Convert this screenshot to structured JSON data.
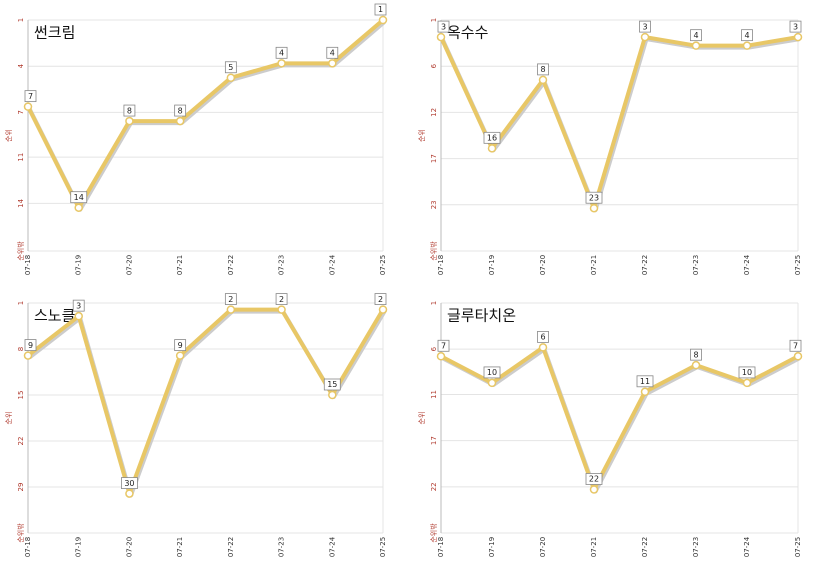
{
  "chart_data": [
    {
      "type": "line",
      "title": "썬크림",
      "ylabel": "순위",
      "color": "#e8c766",
      "categories": [
        "07-18",
        "07-19",
        "07-20",
        "07-21",
        "07-22",
        "07-23",
        "07-24",
        "07-25"
      ],
      "values": [
        7,
        14,
        8,
        8,
        5,
        4,
        4,
        1
      ],
      "ylim": [
        1,
        17
      ],
      "y_reversed": true,
      "grid": true,
      "yticks": [
        1,
        {
          "value": 4.2,
          "label": "4"
        },
        {
          "value": 7.4,
          "label": "7"
        },
        {
          "value": 10.5,
          "label": "11"
        },
        {
          "value": 13.7,
          "label": "14"
        },
        {
          "value": 17,
          "label": "순위밖"
        }
      ]
    },
    {
      "type": "line",
      "title": "옥수수",
      "ylabel": "순위",
      "color": "#e8c766",
      "categories": [
        "07-18",
        "07-19",
        "07-20",
        "07-21",
        "07-22",
        "07-23",
        "07-24",
        "07-25"
      ],
      "values": [
        3,
        16,
        8,
        23,
        3,
        4,
        4,
        3
      ],
      "ylim": [
        1,
        28
      ],
      "y_reversed": true,
      "grid": true,
      "yticks": [
        1,
        {
          "value": 6.4,
          "label": "6"
        },
        {
          "value": 11.8,
          "label": "12"
        },
        {
          "value": 17.2,
          "label": "17"
        },
        {
          "value": 22.6,
          "label": "23"
        },
        {
          "value": 28,
          "label": "순위밖"
        }
      ]
    },
    {
      "type": "line",
      "title": "스노클",
      "ylabel": "순위",
      "color": "#e8c766",
      "categories": [
        "07-18",
        "07-19",
        "07-20",
        "07-21",
        "07-22",
        "07-23",
        "07-24",
        "07-25"
      ],
      "values": [
        9,
        3,
        30,
        9,
        2,
        2,
        15,
        2
      ],
      "ylim": [
        1,
        36
      ],
      "y_reversed": true,
      "grid": true,
      "yticks": [
        1,
        8,
        15,
        22,
        29,
        {
          "value": 36,
          "label": "순위밖"
        }
      ]
    },
    {
      "type": "line",
      "title": "글루타치온",
      "ylabel": "순위",
      "color": "#e8c766",
      "categories": [
        "07-18",
        "07-19",
        "07-20",
        "07-21",
        "07-22",
        "07-23",
        "07-24",
        "07-25"
      ],
      "values": [
        7,
        10,
        6,
        22,
        11,
        8,
        10,
        7
      ],
      "ylim": [
        1,
        26.9
      ],
      "y_reversed": true,
      "grid": true,
      "yticks": [
        1,
        {
          "value": 6.2,
          "label": "6"
        },
        {
          "value": 11.3,
          "label": "11"
        },
        {
          "value": 16.5,
          "label": "17"
        },
        {
          "value": 21.7,
          "label": "22"
        },
        {
          "value": 26.9,
          "label": "순위밖"
        }
      ]
    }
  ]
}
